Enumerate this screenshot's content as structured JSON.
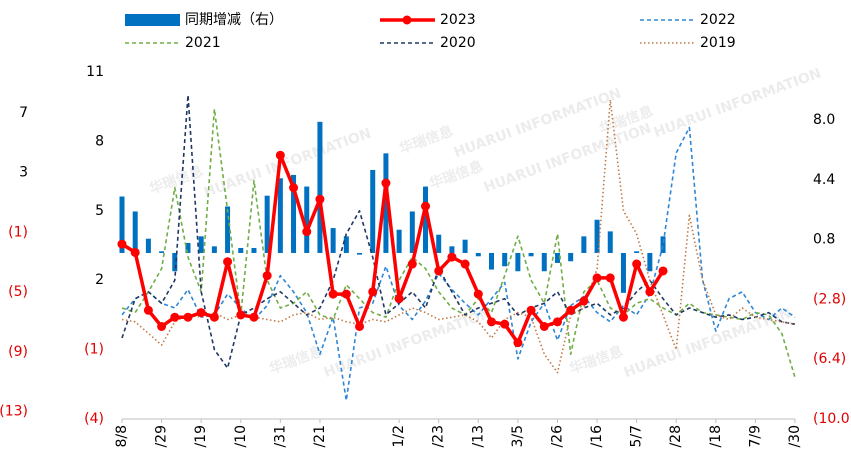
{
  "chart_data": {
    "type": "combo",
    "watermark": "华瑞信息",
    "watermark_sub": "HUARUI INFORMATION",
    "categories": [
      "8/8",
      null,
      null,
      "/29",
      null,
      null,
      "/19",
      null,
      null,
      "/10",
      null,
      null,
      "/31",
      null,
      null,
      "/21",
      null,
      null,
      null,
      null,
      null,
      "1/2",
      null,
      null,
      "/23",
      null,
      null,
      "/13",
      null,
      null,
      "3/5",
      null,
      null,
      "/26",
      null,
      null,
      "/16",
      null,
      null,
      "5/7",
      null,
      null,
      "/28",
      null,
      null,
      "/18",
      null,
      null,
      "7/9",
      null,
      null,
      "/30"
    ],
    "ylim": [
      -4,
      11
    ],
    "yticks": [
      11,
      8,
      5,
      2,
      {
        "value": -1,
        "label": "(1)"
      },
      {
        "value": -4,
        "label": "(4)"
      }
    ],
    "y2lim": [
      -10,
      10.9
    ],
    "y2ticks": [
      {
        "value": 8,
        "label": "8.0"
      },
      4.4,
      0.8,
      {
        "value": -2.8,
        "label": "(2.8)"
      },
      {
        "value": -6.4,
        "label": "(6.4)"
      },
      {
        "value": -10,
        "label": "(10.0)"
      }
    ],
    "y3lim": [
      -13.5,
      9.75
    ],
    "y3ticks": [
      7,
      3,
      {
        "value": -1,
        "label": "(1)"
      },
      {
        "value": -5,
        "label": "(5)"
      },
      {
        "value": -9,
        "label": "(9)"
      },
      {
        "value": -13,
        "label": "(13)"
      }
    ],
    "negative_tick_color": "#e00000",
    "series": [
      {
        "name": "同期增减（右）",
        "kind": "bar",
        "axis": "y2",
        "color": "#0070c0",
        "values": [
          3.4,
          2.5,
          0.86,
          0.1,
          -1.1,
          0.6,
          1.0,
          0.4,
          2.8,
          0.3,
          0.3,
          3.45,
          4.5,
          4.7,
          4.0,
          7.9,
          1.5,
          1.0,
          -0.1,
          5.0,
          6.0,
          1.4,
          2.5,
          4.0,
          1.1,
          0.4,
          0.8,
          -0.2,
          -1.0,
          -0.8,
          -1.1,
          -0.2,
          -1.1,
          -0.6,
          -0.5,
          1.0,
          2.0,
          1.3,
          -2.4,
          0.1,
          -1.1,
          1.0,
          null,
          null,
          null,
          null,
          null,
          null,
          null,
          null,
          null,
          null
        ]
      },
      {
        "name": "2023",
        "kind": "markers",
        "color": "#ff0000",
        "values": [
          3.56,
          3.2,
          0.7,
          0.0,
          0.4,
          0.4,
          0.6,
          0.4,
          2.8,
          0.5,
          0.4,
          2.2,
          7.4,
          6.0,
          4.1,
          5.5,
          1.4,
          1.4,
          0.0,
          1.5,
          6.2,
          1.2,
          2.7,
          5.2,
          2.4,
          3.0,
          2.7,
          1.4,
          0.2,
          0.1,
          -0.7,
          0.7,
          0.0,
          0.2,
          0.7,
          1.1,
          2.1,
          2.1,
          0.4,
          2.7,
          1.5,
          2.4,
          null,
          null,
          null,
          null,
          null,
          null,
          null,
          null,
          null,
          null
        ]
      },
      {
        "name": "2022",
        "kind": "dashed",
        "color": "#2e86d6",
        "values": [
          0.5,
          1.2,
          1.5,
          1.0,
          0.8,
          1.6,
          0.4,
          0.5,
          1.4,
          0.8,
          0.3,
          0.9,
          2.2,
          1.5,
          0.6,
          -1.2,
          0.4,
          -3.2,
          0.8,
          1.0,
          2.6,
          0.9,
          0.3,
          1.1,
          2.3,
          1.6,
          1.0,
          0.5,
          1.2,
          1.9,
          -1.4,
          0.2,
          1.0,
          -0.6,
          0.9,
          1.3,
          0.6,
          0.2,
          0.9,
          0.5,
          1.4,
          3.5,
          7.5,
          8.6,
          2.0,
          -0.2,
          1.2,
          1.5,
          0.6,
          0.3,
          0.8,
          0.4
        ]
      },
      {
        "name": "2021",
        "kind": "dashed",
        "color": "#70ad47",
        "values": [
          0.8,
          0.6,
          1.5,
          2.5,
          6.0,
          3.0,
          1.5,
          9.4,
          5.0,
          0.5,
          6.3,
          2.0,
          0.8,
          1.0,
          1.5,
          0.5,
          0.3,
          1.8,
          1.2,
          0.6,
          0.4,
          2.0,
          3.0,
          2.5,
          1.5,
          0.8,
          0.5,
          1.2,
          0.6,
          2.2,
          3.9,
          2.0,
          1.0,
          4.0,
          -1.2,
          1.5,
          2.0,
          0.8,
          0.5,
          1.0,
          1.2,
          0.8,
          0.5,
          1.0,
          0.6,
          0.5,
          0.4,
          0.3,
          0.6,
          0.5,
          -0.3,
          -2.2
        ]
      },
      {
        "name": "2020",
        "kind": "dashed",
        "color": "#203864",
        "values": [
          -0.5,
          1.2,
          1.5,
          1.0,
          2.0,
          10.0,
          1.5,
          -1.0,
          -1.8,
          0.5,
          0.8,
          1.2,
          1.5,
          1.0,
          0.5,
          0.8,
          2.0,
          4.0,
          5.0,
          3.0,
          0.5,
          1.0,
          1.5,
          0.8,
          2.5,
          1.5,
          0.5,
          0.8,
          1.0,
          1.2,
          0.5,
          0.8,
          1.0,
          1.5,
          0.5,
          0.8,
          1.0,
          0.5,
          0.8,
          1.5,
          2.0,
          1.2,
          0.5,
          0.8,
          0.6,
          0.4,
          0.5,
          0.3,
          0.4,
          0.6,
          0.2,
          0.1
        ]
      },
      {
        "name": "2019",
        "kind": "dotted",
        "color": "#c07a45",
        "values": [
          0.3,
          0.2,
          -0.3,
          -0.8,
          0.2,
          0.5,
          0.4,
          0.6,
          0.3,
          0.5,
          0.4,
          0.3,
          0.2,
          0.5,
          0.6,
          0.3,
          0.4,
          0.2,
          0.1,
          0.3,
          0.2,
          0.5,
          0.8,
          0.6,
          0.3,
          0.4,
          0.5,
          0.2,
          -0.5,
          0.3,
          0.6,
          0.4,
          -1.2,
          -2.0,
          0.5,
          0.8,
          2.5,
          9.8,
          5.0,
          4.0,
          2.0,
          0.5,
          -1.0,
          4.8,
          2.0,
          0.5,
          0.3,
          0.8,
          0.4,
          0.3,
          0.2,
          0.1
        ]
      }
    ]
  }
}
